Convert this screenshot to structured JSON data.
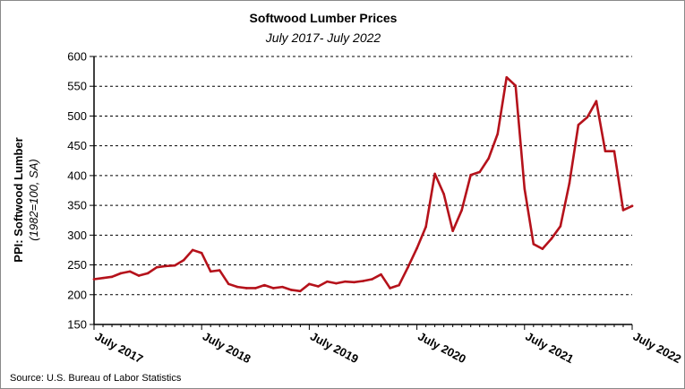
{
  "chart_data": {
    "type": "line",
    "title": "Softwood Lumber Prices",
    "subtitle": "July 2017- July 2022",
    "ylabel": "PPI: Softwood Lumber",
    "ylabel_note": "(1982=100, SA)",
    "source": "Source: U.S. Bureau of Labor Statistics",
    "ylim": [
      150,
      600
    ],
    "yticks": [
      150,
      200,
      250,
      300,
      350,
      400,
      450,
      500,
      550,
      600
    ],
    "grid": "horizontal-dashed",
    "x_tick_labels": [
      "July 2017",
      "July 2018",
      "July 2019",
      "July 2020",
      "July 2021",
      "July 2022"
    ],
    "line_color": "#b5121b",
    "series": [
      {
        "x": [
          "2017-07",
          "2017-08",
          "2017-09",
          "2017-10",
          "2017-11",
          "2017-12",
          "2018-01",
          "2018-02",
          "2018-03",
          "2018-04",
          "2018-05",
          "2018-06",
          "2018-07",
          "2018-08",
          "2018-09",
          "2018-10",
          "2018-11",
          "2018-12",
          "2019-01",
          "2019-02",
          "2019-03",
          "2019-04",
          "2019-05",
          "2019-06",
          "2019-07",
          "2019-08",
          "2019-09",
          "2019-10",
          "2019-11",
          "2019-12",
          "2020-01",
          "2020-02",
          "2020-03",
          "2020-04",
          "2020-05",
          "2020-06",
          "2020-07",
          "2020-08",
          "2020-09",
          "2020-10",
          "2020-11",
          "2020-12",
          "2021-01",
          "2021-02",
          "2021-03",
          "2021-04",
          "2021-05",
          "2021-06",
          "2021-07",
          "2021-08",
          "2021-09",
          "2021-10",
          "2021-11",
          "2021-12",
          "2022-01",
          "2022-02",
          "2022-03",
          "2022-04",
          "2022-05",
          "2022-06",
          "2022-07"
        ],
        "values": [
          226,
          228,
          230,
          236,
          239,
          232,
          236,
          246,
          248,
          249,
          258,
          275,
          270,
          239,
          241,
          218,
          213,
          211,
          211,
          216,
          211,
          213,
          208,
          206,
          218,
          214,
          222,
          219,
          222,
          221,
          223,
          226,
          234,
          211,
          216,
          246,
          278,
          314,
          403,
          369,
          307,
          342,
          401,
          406,
          429,
          470,
          565,
          551,
          378,
          285,
          277,
          294,
          315,
          387,
          485,
          498,
          525,
          441,
          441,
          342,
          349
        ]
      }
    ]
  }
}
